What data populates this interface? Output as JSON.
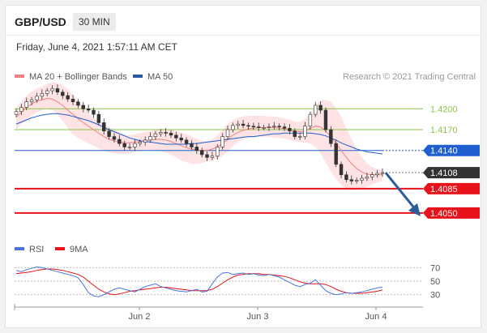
{
  "header": {
    "symbol": "GBP/USD",
    "timeframe": "30 MIN"
  },
  "timestamp": "Friday, June 4, 2021 1:57:11 AM CET",
  "legend_main": [
    {
      "label": "MA 20 + Bollinger Bands",
      "color": "#f08080"
    },
    {
      "label": "MA 50",
      "color": "#2c5aa0"
    }
  ],
  "credit": "Research © 2021 Trading Central",
  "legend_rsi": [
    {
      "label": "RSI",
      "color": "#4a74d9"
    },
    {
      "label": "9MA",
      "color": "#e8121b"
    }
  ],
  "colors": {
    "resistance": "#8ac44a",
    "pivot": "#1f5fcf",
    "support": "#e8121b",
    "current": "#333333",
    "forecast_arrow": "#2d5b9a",
    "band_fill": "#fde0e0",
    "candle": "#333333"
  },
  "chart_data": [
    {
      "type": "candlestick",
      "title": "GBP/USD 30 MIN",
      "x_ticks": [
        "Jun 2",
        "Jun 3",
        "Jun 4"
      ],
      "ylim": [
        1.403,
        1.424
      ],
      "levels": [
        {
          "label": "1.4200",
          "value": 1.42,
          "kind": "resistance"
        },
        {
          "label": "1.4170",
          "value": 1.417,
          "kind": "resistance"
        },
        {
          "label": "1.4140",
          "value": 1.414,
          "kind": "pivot"
        },
        {
          "label": "1.4108",
          "value": 1.4108,
          "kind": "current"
        },
        {
          "label": "1.4085",
          "value": 1.4085,
          "kind": "support"
        },
        {
          "label": "1.4050",
          "value": 1.405,
          "kind": "support"
        }
      ],
      "series": [
        {
          "name": "Price",
          "close": [
            1.4196,
            1.4202,
            1.421,
            1.4213,
            1.4218,
            1.4222,
            1.4226,
            1.4229,
            1.4224,
            1.4219,
            1.4214,
            1.421,
            1.4205,
            1.42,
            1.4198,
            1.4192,
            1.418,
            1.4168,
            1.416,
            1.4156,
            1.415,
            1.4145,
            1.4145,
            1.415,
            1.4152,
            1.4155,
            1.416,
            1.4164,
            1.4166,
            1.4165,
            1.4162,
            1.4158,
            1.4155,
            1.415,
            1.4145,
            1.414,
            1.4134,
            1.413,
            1.4132,
            1.4145,
            1.416,
            1.417,
            1.4176,
            1.4178,
            1.4176,
            1.4175,
            1.4174,
            1.4173,
            1.4173,
            1.4174,
            1.4175,
            1.4174,
            1.4172,
            1.4168,
            1.416,
            1.416,
            1.4175,
            1.4192,
            1.4205,
            1.4198,
            1.417,
            1.415,
            1.412,
            1.4105,
            1.4098,
            1.4096,
            1.4097,
            1.41,
            1.4102,
            1.4105,
            1.4107,
            1.4108
          ]
        },
        {
          "name": "MA 20",
          "values": [
            1.4188,
            1.4195,
            1.4202,
            1.4207,
            1.4211,
            1.4213,
            1.4215,
            1.4214,
            1.421,
            1.4205,
            1.4198,
            1.4192,
            1.4186,
            1.418,
            1.4175,
            1.417,
            1.4165,
            1.416,
            1.4156,
            1.4154,
            1.4152,
            1.4151,
            1.4151,
            1.4152,
            1.4153,
            1.4154,
            1.4155,
            1.4156,
            1.4156,
            1.4155,
            1.4153,
            1.415,
            1.4147,
            1.4144,
            1.4142,
            1.4141,
            1.414,
            1.414,
            1.4142,
            1.4145,
            1.415,
            1.4156,
            1.4162,
            1.4166,
            1.4169,
            1.4171,
            1.4172,
            1.4173,
            1.4173,
            1.4173,
            1.4173,
            1.4172,
            1.4171,
            1.417,
            1.4168,
            1.4167,
            1.4168,
            1.4172,
            1.4175,
            1.4174,
            1.4168,
            1.416,
            1.415,
            1.414,
            1.413,
            1.4121,
            1.4114,
            1.4109,
            1.4106,
            1.4105,
            1.4105,
            1.4105
          ]
        },
        {
          "name": "Bollinger Upper",
          "values": [
            1.4202,
            1.421,
            1.4219,
            1.4225,
            1.4229,
            1.4232,
            1.4236,
            1.4238,
            1.4237,
            1.4234,
            1.4228,
            1.422,
            1.4212,
            1.4203,
            1.4194,
            1.4187,
            1.4182,
            1.4178,
            1.4174,
            1.417,
            1.4166,
            1.4163,
            1.4162,
            1.4163,
            1.4165,
            1.4167,
            1.4168,
            1.417,
            1.4171,
            1.4171,
            1.417,
            1.4168,
            1.4166,
            1.4163,
            1.416,
            1.4157,
            1.4154,
            1.4153,
            1.4156,
            1.4162,
            1.417,
            1.4178,
            1.4184,
            1.4187,
            1.4189,
            1.419,
            1.419,
            1.419,
            1.419,
            1.4189,
            1.4189,
            1.4188,
            1.4186,
            1.4184,
            1.4182,
            1.4181,
            1.4185,
            1.4194,
            1.4205,
            1.4212,
            1.4213,
            1.421,
            1.4201,
            1.4188,
            1.4172,
            1.4156,
            1.4142,
            1.413,
            1.4121,
            1.4116,
            1.4113,
            1.4112
          ]
        },
        {
          "name": "Bollinger Lower",
          "values": [
            1.417,
            1.4178,
            1.4185,
            1.419,
            1.4195,
            1.4198,
            1.42,
            1.4198,
            1.4192,
            1.4183,
            1.4172,
            1.4163,
            1.4158,
            1.4154,
            1.415,
            1.4147,
            1.4143,
            1.414,
            1.4137,
            1.4136,
            1.4135,
            1.4135,
            1.4136,
            1.4138,
            1.414,
            1.4141,
            1.4141,
            1.414,
            1.4139,
            1.4137,
            1.4134,
            1.413,
            1.4126,
            1.4123,
            1.4121,
            1.4121,
            1.4122,
            1.4124,
            1.4126,
            1.4128,
            1.4132,
            1.4138,
            1.4146,
            1.4152,
            1.4156,
            1.4158,
            1.4159,
            1.416,
            1.416,
            1.4159,
            1.4159,
            1.4158,
            1.4157,
            1.4155,
            1.4153,
            1.4152,
            1.4151,
            1.415,
            1.4145,
            1.4136,
            1.4123,
            1.411,
            1.4099,
            1.409,
            1.4085,
            1.4082,
            1.4083,
            1.4085,
            1.4088,
            1.4091,
            1.4094,
            1.4096
          ]
        },
        {
          "name": "MA 50",
          "values": [
            1.4178,
            1.4181,
            1.4184,
            1.4187,
            1.4189,
            1.4191,
            1.4192,
            1.4193,
            1.4193,
            1.4192,
            1.4191,
            1.4189,
            1.4187,
            1.4185,
            1.4183,
            1.418,
            1.4177,
            1.4173,
            1.417,
            1.4167,
            1.4164,
            1.4161,
            1.4158,
            1.4156,
            1.4154,
            1.4153,
            1.4152,
            1.4151,
            1.415,
            1.4149,
            1.4149,
            1.4149,
            1.4149,
            1.4149,
            1.415,
            1.415,
            1.4151,
            1.4152,
            1.4153,
            1.4154,
            1.4155,
            1.4156,
            1.4157,
            1.4158,
            1.4159,
            1.416,
            1.416,
            1.4161,
            1.4162,
            1.4163,
            1.4164,
            1.4164,
            1.4165,
            1.4165,
            1.4165,
            1.4165,
            1.4165,
            1.4165,
            1.4164,
            1.4163,
            1.4161,
            1.4158,
            1.4155,
            1.4151,
            1.4148,
            1.4145,
            1.4142,
            1.414,
            1.4138,
            1.4137,
            1.4136,
            1.4135
          ]
        }
      ],
      "forecast": {
        "from": 1.4108,
        "to": 1.405,
        "direction": "down"
      }
    },
    {
      "type": "line",
      "title": "RSI",
      "ylim": [
        20,
        80
      ],
      "y_ticks": [
        70,
        50,
        30
      ],
      "series": [
        {
          "name": "RSI",
          "values": [
            66,
            64,
            67,
            69,
            71,
            70,
            68,
            66,
            64,
            62,
            60,
            58,
            55,
            45,
            33,
            28,
            27,
            30,
            34,
            38,
            40,
            38,
            36,
            34,
            38,
            42,
            44,
            46,
            42,
            40,
            38,
            36,
            35,
            34,
            36,
            38,
            34,
            35,
            46,
            56,
            62,
            63,
            60,
            61,
            62,
            60,
            61,
            59,
            58,
            60,
            58,
            56,
            52,
            48,
            44,
            42,
            45,
            47,
            52,
            44,
            36,
            32,
            30,
            31,
            33,
            32,
            33,
            34,
            36,
            38,
            40,
            41
          ]
        },
        {
          "name": "9MA",
          "values": [
            61,
            62,
            63,
            64,
            66,
            67,
            68,
            68,
            67,
            66,
            64,
            62,
            60,
            56,
            50,
            44,
            38,
            34,
            31,
            30,
            31,
            33,
            35,
            36,
            37,
            38,
            39,
            40,
            41,
            41,
            40,
            39,
            38,
            37,
            36,
            36,
            36,
            36,
            38,
            42,
            47,
            52,
            56,
            59,
            60,
            61,
            61,
            61,
            60,
            60,
            59,
            58,
            57,
            55,
            52,
            49,
            47,
            46,
            46,
            46,
            45,
            42,
            38,
            35,
            33,
            32,
            32,
            32,
            33,
            34,
            35,
            37
          ]
        }
      ]
    }
  ]
}
